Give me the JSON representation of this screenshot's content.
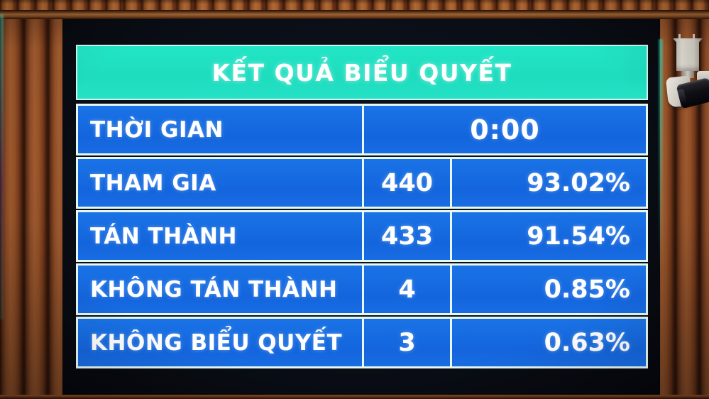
{
  "board": {
    "title": "KẾT QUẢ BIỂU QUYẾT",
    "rows": [
      {
        "label": "THỜI GIAN",
        "value": "0:00"
      },
      {
        "label": "THAM GIA",
        "count": "440",
        "percent": "93.02%"
      },
      {
        "label": "TÁN THÀNH",
        "count": "433",
        "percent": "91.54%"
      },
      {
        "label": "KHÔNG TÁN THÀNH",
        "count": "4",
        "percent": "0.85%"
      },
      {
        "label": "KHÔNG BIỂU QUYẾT",
        "count": "3",
        "percent": "0.63%"
      }
    ],
    "colors": {
      "header_bg": "#1fe0c2",
      "cell_bg": "#1468e0",
      "border": "#e6f8f1",
      "text": "#ffffff",
      "screen_bg": "#0a0e16"
    }
  },
  "environment": {
    "objects": [
      "wooden-slat-wall",
      "security-camera",
      "led-display-screen"
    ]
  }
}
